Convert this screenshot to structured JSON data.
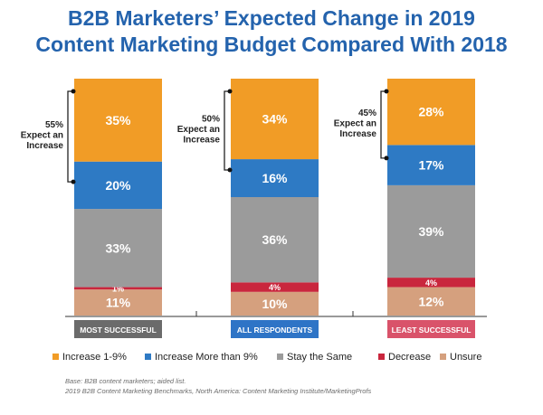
{
  "title_line1": "B2B Marketers’ Expected Change in 2019",
  "title_line2": "Content Marketing Budget Compared With 2018",
  "chart_data": {
    "type": "bar",
    "stacked": true,
    "normalized": "percent",
    "categories": [
      "MOST SUCCESSFUL",
      "ALL RESPONDENTS",
      "LEAST SUCCESSFUL"
    ],
    "category_colors": [
      "#6b6b6b",
      "#2e74c6",
      "#d9536a"
    ],
    "series": [
      {
        "name": "Unsure",
        "color": "#d5a07e",
        "values": [
          11,
          10,
          12
        ]
      },
      {
        "name": "Decrease",
        "color": "#c9263d",
        "values": [
          1,
          4,
          4
        ]
      },
      {
        "name": "Stay the Same",
        "color": "#9b9b9b",
        "values": [
          33,
          36,
          39
        ]
      },
      {
        "name": "Increase More than 9%",
        "color": "#2e7ac4",
        "values": [
          20,
          16,
          17
        ]
      },
      {
        "name": "Increase 1-9%",
        "color": "#f19c26",
        "values": [
          35,
          34,
          28
        ]
      }
    ],
    "value_labels": [
      [
        "11%",
        "1%",
        "33%",
        "20%",
        "35%"
      ],
      [
        "10%",
        "4%",
        "36%",
        "16%",
        "34%"
      ],
      [
        "12%",
        "4%",
        "39%",
        "17%",
        "28%"
      ]
    ],
    "brackets": [
      {
        "pct": "55%",
        "line2": "Expect an",
        "line3": "Increase"
      },
      {
        "pct": "50%",
        "line2": "Expect an",
        "line3": "Increase"
      },
      {
        "pct": "45%",
        "line2": "Expect an",
        "line3": "Increase"
      }
    ],
    "legend_order": [
      "Increase 1-9%",
      "Increase More than 9%",
      "Stay the Same",
      "Decrease",
      "Unsure"
    ],
    "legend_position": "bottom"
  },
  "source_line1": "Base: B2B content marketers; aided list.",
  "source_line2": "2019 B2B Content Marketing Benchmarks, North America: Content Marketing Institute/MarketingProfs"
}
